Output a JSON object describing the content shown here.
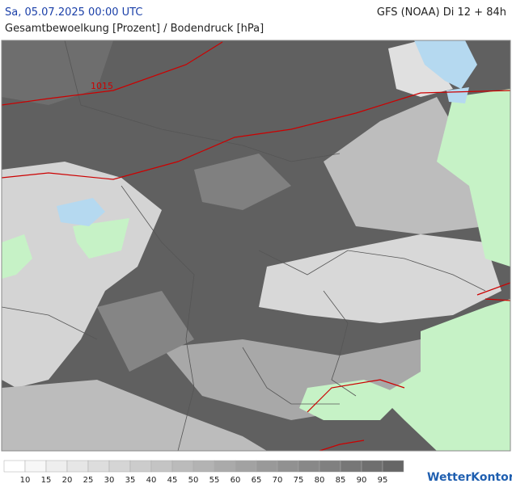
{
  "header": {
    "datetime": "Sa, 05.07.2025 00:00 UTC",
    "model": "GFS (NOAA) Di 12 + 84h",
    "title": "Gesamtbewoelkung [Prozent] / Bodendruck [hPa]"
  },
  "map": {
    "isobar_label": "1015"
  },
  "legend": {
    "labels": [
      10,
      15,
      20,
      25,
      30,
      35,
      40,
      45,
      50,
      55,
      60,
      65,
      70,
      75,
      80,
      85,
      90,
      95
    ]
  },
  "brand": "WetterKontor"
}
